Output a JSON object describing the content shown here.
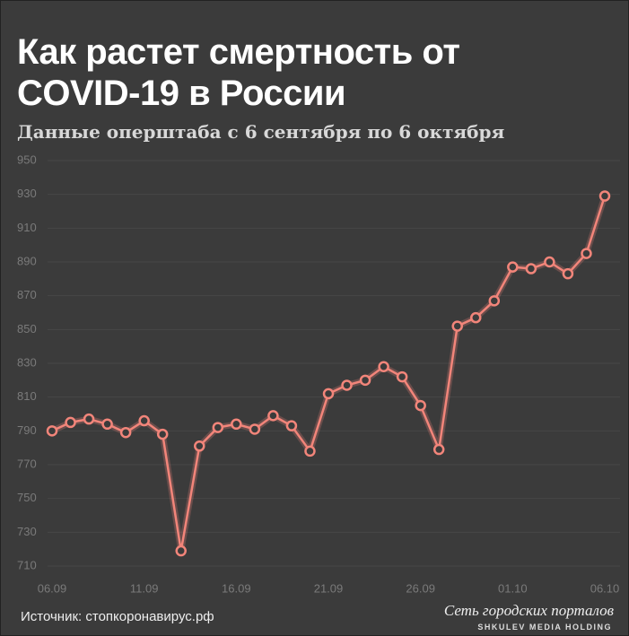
{
  "chart_data": {
    "type": "line",
    "title": "Как растет смертность от COVID-19 в России",
    "subtitle": "Данные оперштаба с 6 сентября по 6 октября",
    "source": "Источник: стопкоронавирус.рф",
    "brand": "Сеть городских порталов",
    "brand_sub": "SHKULEV MEDIA HOLDING",
    "categories": [
      "06.09",
      null,
      null,
      null,
      null,
      "11.09",
      null,
      null,
      null,
      null,
      "16.09",
      null,
      null,
      null,
      null,
      "21.09",
      null,
      null,
      null,
      null,
      "26.09",
      null,
      null,
      null,
      null,
      "01.10",
      null,
      null,
      null,
      null,
      "06.10"
    ],
    "values": [
      790,
      795,
      797,
      794,
      789,
      796,
      788,
      719,
      781,
      792,
      794,
      791,
      799,
      793,
      778,
      812,
      817,
      820,
      828,
      822,
      805,
      779,
      852,
      857,
      867,
      887,
      886,
      890,
      883,
      895,
      929
    ],
    "color": "#f2857a",
    "ylim": [
      700,
      950
    ],
    "yticks": [
      710,
      730,
      750,
      770,
      790,
      810,
      830,
      850,
      870,
      890,
      910,
      930,
      950
    ],
    "grid": true
  }
}
